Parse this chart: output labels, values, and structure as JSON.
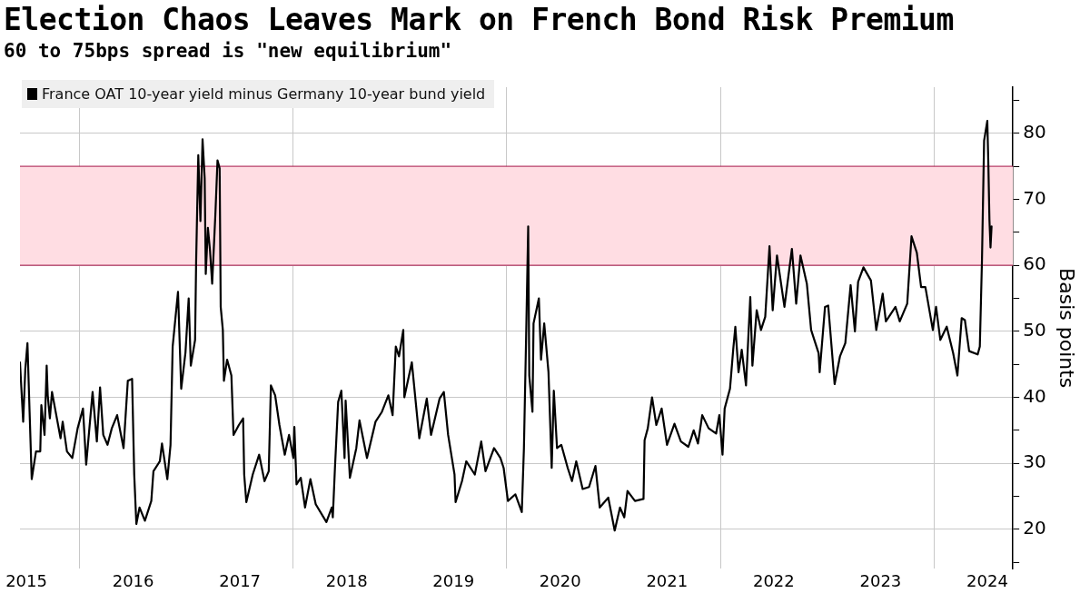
{
  "chart_data": {
    "type": "line",
    "title": "Election Chaos Leaves Mark on French Bond Risk Premium",
    "subtitle": "60 to 75bps spread is \"new equilibrium\"",
    "ylabel": "Basis points",
    "legend": "top left",
    "grid": true,
    "marker": "none",
    "line_style": "solid",
    "xlim": [
      2015.44,
      2024.74
    ],
    "xticks": [
      {
        "value": 2015.5,
        "label": "2015"
      },
      {
        "value": 2016,
        "label": null
      },
      {
        "value": 2016.5,
        "label": "2016"
      },
      {
        "value": 2017.5,
        "label": "2017"
      },
      {
        "value": 2018,
        "label": null
      },
      {
        "value": 2018.5,
        "label": "2018"
      },
      {
        "value": 2019.5,
        "label": "2019"
      },
      {
        "value": 2020,
        "label": null
      },
      {
        "value": 2020.5,
        "label": "2020"
      },
      {
        "value": 2021.5,
        "label": "2021"
      },
      {
        "value": 2022,
        "label": null
      },
      {
        "value": 2022.5,
        "label": "2022"
      },
      {
        "value": 2023.5,
        "label": "2023"
      },
      {
        "value": 2024,
        "label": null
      },
      {
        "value": 2024.5,
        "label": "2024"
      }
    ],
    "ylim": [
      14,
      87
    ],
    "yticks": [
      {
        "value": 15,
        "label": null
      },
      20,
      {
        "value": 25,
        "label": null
      },
      30,
      {
        "value": 35,
        "label": null
      },
      40,
      {
        "value": 45,
        "label": null
      },
      50,
      {
        "value": 55,
        "label": null
      },
      60,
      {
        "value": 65,
        "label": null
      },
      70,
      {
        "value": 75,
        "label": null
      },
      80,
      {
        "value": 85,
        "label": null
      }
    ],
    "bands": [
      {
        "axis": "y",
        "from": 60,
        "to": 75,
        "color": "#ffdde3"
      }
    ],
    "series": [
      {
        "name": "France OAT 10-year yield minus Germany 10-year bund yield",
        "color": "#000000",
        "x": [
          2015.44,
          2015.47,
          2015.49,
          2015.51,
          2015.53,
          2015.55,
          2015.59,
          2015.63,
          2015.64,
          2015.67,
          2015.69,
          2015.7,
          2015.72,
          2015.74,
          2015.78,
          2015.82,
          2015.84,
          2015.88,
          2015.93,
          2015.98,
          2016.03,
          2016.06,
          2016.12,
          2016.16,
          2016.19,
          2016.22,
          2016.26,
          2016.3,
          2016.35,
          2016.41,
          2016.45,
          2016.49,
          2016.51,
          2016.53,
          2016.56,
          2016.61,
          2016.67,
          2016.69,
          2016.75,
          2016.77,
          2016.82,
          2016.85,
          2016.87,
          2016.92,
          2016.95,
          2016.99,
          2017.02,
          2017.04,
          2017.08,
          2017.09,
          2017.11,
          2017.13,
          2017.15,
          2017.17,
          2017.18,
          2017.2,
          2017.22,
          2017.24,
          2017.27,
          2017.29,
          2017.31,
          2017.32,
          2017.34,
          2017.35,
          2017.38,
          2017.42,
          2017.44,
          2017.49,
          2017.53,
          2017.54,
          2017.56,
          2017.62,
          2017.68,
          2017.73,
          2017.77,
          2017.79,
          2017.83,
          2017.87,
          2017.92,
          2017.96,
          2018.0,
          2018.01,
          2018.03,
          2018.07,
          2018.11,
          2018.16,
          2018.21,
          2018.31,
          2018.36,
          2018.37,
          2018.39,
          2018.42,
          2018.45,
          2018.48,
          2018.49,
          2018.53,
          2018.59,
          2018.62,
          2018.69,
          2018.77,
          2018.83,
          2018.89,
          2018.93,
          2018.96,
          2018.99,
          2019.03,
          2019.04,
          2019.11,
          2019.18,
          2019.25,
          2019.29,
          2019.37,
          2019.41,
          2019.45,
          2019.51,
          2019.52,
          2019.58,
          2019.62,
          2019.7,
          2019.76,
          2019.8,
          2019.88,
          2019.94,
          2019.97,
          2020.01,
          2020.08,
          2020.14,
          2020.16,
          2020.18,
          2020.2,
          2020.21,
          2020.24,
          2020.25,
          2020.3,
          2020.32,
          2020.35,
          2020.39,
          2020.42,
          2020.44,
          2020.47,
          2020.51,
          2020.57,
          2020.61,
          2020.65,
          2020.71,
          2020.77,
          2020.83,
          2020.87,
          2020.95,
          2021.01,
          2021.06,
          2021.1,
          2021.13,
          2021.2,
          2021.28,
          2021.29,
          2021.32,
          2021.36,
          2021.4,
          2021.45,
          2021.5,
          2021.57,
          2021.63,
          2021.7,
          2021.75,
          2021.79,
          2021.83,
          2021.89,
          2021.96,
          2021.99,
          2022.02,
          2022.04,
          2022.09,
          2022.12,
          2022.14,
          2022.17,
          2022.2,
          2022.24,
          2022.28,
          2022.3,
          2022.34,
          2022.38,
          2022.42,
          2022.46,
          2022.49,
          2022.53,
          2022.6,
          2022.67,
          2022.71,
          2022.75,
          2022.81,
          2022.85,
          2022.92,
          2022.93,
          2022.98,
          2023.01,
          2023.07,
          2023.12,
          2023.17,
          2023.22,
          2023.26,
          2023.29,
          2023.34,
          2023.41,
          2023.46,
          2023.52,
          2023.55,
          2023.64,
          2023.68,
          2023.75,
          2023.79,
          2023.84,
          2023.88,
          2023.92,
          2023.99,
          2024.02,
          2024.06,
          2024.12,
          2024.18,
          2024.22,
          2024.26,
          2024.29,
          2024.33,
          2024.41,
          2024.43,
          2024.45,
          2024.47,
          2024.48,
          2024.5,
          2024.51,
          2024.52,
          2024.53,
          2024.54
        ],
        "values": [
          45.3,
          36.3,
          44.3,
          48.2,
          37.8,
          27.6,
          31.8,
          31.8,
          38.8,
          34.3,
          44.8,
          40.3,
          36.8,
          40.8,
          37.3,
          33.8,
          36.3,
          31.8,
          30.8,
          35.3,
          38.3,
          29.8,
          40.8,
          33.3,
          41.5,
          34.3,
          32.8,
          35.3,
          37.3,
          32.3,
          42.5,
          42.8,
          28.3,
          20.8,
          23.3,
          21.3,
          24.3,
          28.8,
          30.3,
          33.0,
          27.6,
          32.8,
          47.7,
          56.0,
          41.3,
          46.8,
          55.0,
          44.8,
          48.7,
          60.7,
          76.7,
          66.7,
          79.1,
          73.2,
          58.7,
          65.7,
          62.2,
          57.2,
          67.7,
          75.9,
          74.7,
          53.7,
          50.2,
          42.5,
          45.7,
          43.3,
          34.3,
          35.8,
          36.8,
          28.3,
          24.1,
          28.3,
          31.3,
          27.3,
          28.8,
          41.8,
          40.3,
          35.8,
          31.3,
          34.3,
          30.8,
          35.5,
          26.8,
          27.8,
          23.3,
          27.6,
          23.8,
          21.1,
          23.3,
          21.8,
          29.3,
          39.3,
          41.0,
          30.8,
          39.5,
          27.8,
          32.3,
          36.5,
          30.8,
          36.3,
          37.8,
          40.3,
          37.3,
          47.7,
          46.2,
          50.2,
          40.0,
          45.3,
          33.8,
          39.8,
          34.3,
          39.8,
          40.8,
          34.3,
          28.3,
          24.1,
          27.3,
          30.3,
          28.3,
          33.3,
          28.8,
          32.3,
          30.8,
          29.3,
          24.3,
          25.3,
          22.6,
          32.3,
          48.7,
          65.9,
          43.3,
          37.8,
          51.2,
          55.0,
          45.7,
          51.2,
          43.8,
          29.3,
          41.0,
          32.3,
          32.8,
          29.3,
          27.3,
          30.3,
          26.1,
          26.4,
          29.6,
          23.3,
          24.8,
          19.8,
          23.3,
          21.8,
          25.8,
          24.3,
          24.6,
          33.5,
          35.3,
          40.0,
          35.8,
          38.3,
          32.8,
          36.0,
          33.3,
          32.5,
          35.0,
          33.0,
          37.3,
          35.3,
          34.5,
          37.3,
          31.3,
          38.3,
          41.3,
          47.2,
          50.7,
          43.8,
          47.2,
          41.8,
          55.2,
          44.8,
          53.2,
          50.2,
          52.2,
          62.9,
          53.2,
          61.5,
          53.7,
          62.5,
          54.2,
          61.5,
          57.2,
          50.2,
          46.7,
          43.8,
          53.7,
          53.9,
          42.0,
          46.2,
          48.2,
          57.0,
          50.0,
          57.5,
          59.7,
          57.7,
          50.2,
          55.7,
          51.5,
          53.7,
          51.5,
          54.2,
          64.4,
          61.9,
          56.7,
          56.7,
          50.2,
          53.7,
          48.7,
          50.7,
          46.7,
          43.3,
          52.0,
          51.7,
          47.0,
          46.5,
          47.7,
          60.7,
          78.9,
          79.9,
          81.9,
          75.2,
          66.9,
          62.7,
          65.9
        ]
      }
    ]
  }
}
